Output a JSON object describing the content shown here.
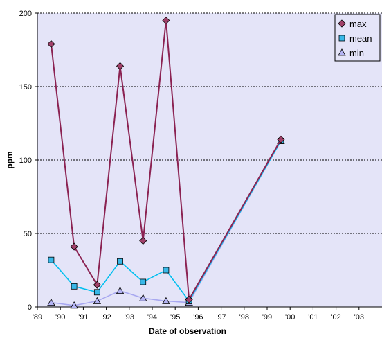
{
  "chart_data": {
    "type": "line",
    "xlabel": "Date of observation",
    "ylabel": "ppm",
    "ylim": [
      0,
      200
    ],
    "yticks": [
      0,
      50,
      100,
      150,
      200
    ],
    "xlim": [
      1989,
      2004
    ],
    "xticks": [
      {
        "x": 1989,
        "label": "'89"
      },
      {
        "x": 1990,
        "label": "'90"
      },
      {
        "x": 1991,
        "label": "'91"
      },
      {
        "x": 1992,
        "label": "'92"
      },
      {
        "x": 1993,
        "label": "'93"
      },
      {
        "x": 1994,
        "label": "'94"
      },
      {
        "x": 1995,
        "label": "'95"
      },
      {
        "x": 1996,
        "label": "'96"
      },
      {
        "x": 1997,
        "label": "'97"
      },
      {
        "x": 1998,
        "label": "'98"
      },
      {
        "x": 1999,
        "label": "'99"
      },
      {
        "x": 2000,
        "label": "'00"
      },
      {
        "x": 2001,
        "label": "'01"
      },
      {
        "x": 2002,
        "label": "'02"
      },
      {
        "x": 2003,
        "label": "'03"
      }
    ],
    "grid": "horizontal dotted",
    "legend_position": "top-right",
    "background_color": "#E4E4F8",
    "series": [
      {
        "name": "max",
        "color": "#8B2252",
        "marker": "diamond",
        "marker_fill": "#A0406A",
        "points": [
          [
            1989.6,
            179
          ],
          [
            1990.6,
            41
          ],
          [
            1991.6,
            15
          ],
          [
            1992.6,
            164
          ],
          [
            1993.6,
            45
          ],
          [
            1994.6,
            195
          ],
          [
            1995.6,
            5
          ],
          [
            1999.6,
            114
          ]
        ]
      },
      {
        "name": "mean",
        "color": "#00BFEF",
        "marker": "square",
        "marker_fill": "#38B8E8",
        "points": [
          [
            1989.6,
            32
          ],
          [
            1990.6,
            14
          ],
          [
            1991.6,
            10
          ],
          [
            1992.6,
            31
          ],
          [
            1993.6,
            17
          ],
          [
            1994.6,
            25
          ],
          [
            1995.6,
            4
          ],
          [
            1999.6,
            113
          ]
        ]
      },
      {
        "name": "min",
        "color": "#A8A8F0",
        "marker": "triangle",
        "marker_fill": "#B4B4F4",
        "points": [
          [
            1989.6,
            3
          ],
          [
            1990.6,
            1
          ],
          [
            1991.6,
            4
          ],
          [
            1992.6,
            11
          ],
          [
            1993.6,
            6
          ],
          [
            1994.6,
            4
          ],
          [
            1995.6,
            3
          ],
          [
            1999.6,
            113
          ]
        ]
      }
    ]
  }
}
